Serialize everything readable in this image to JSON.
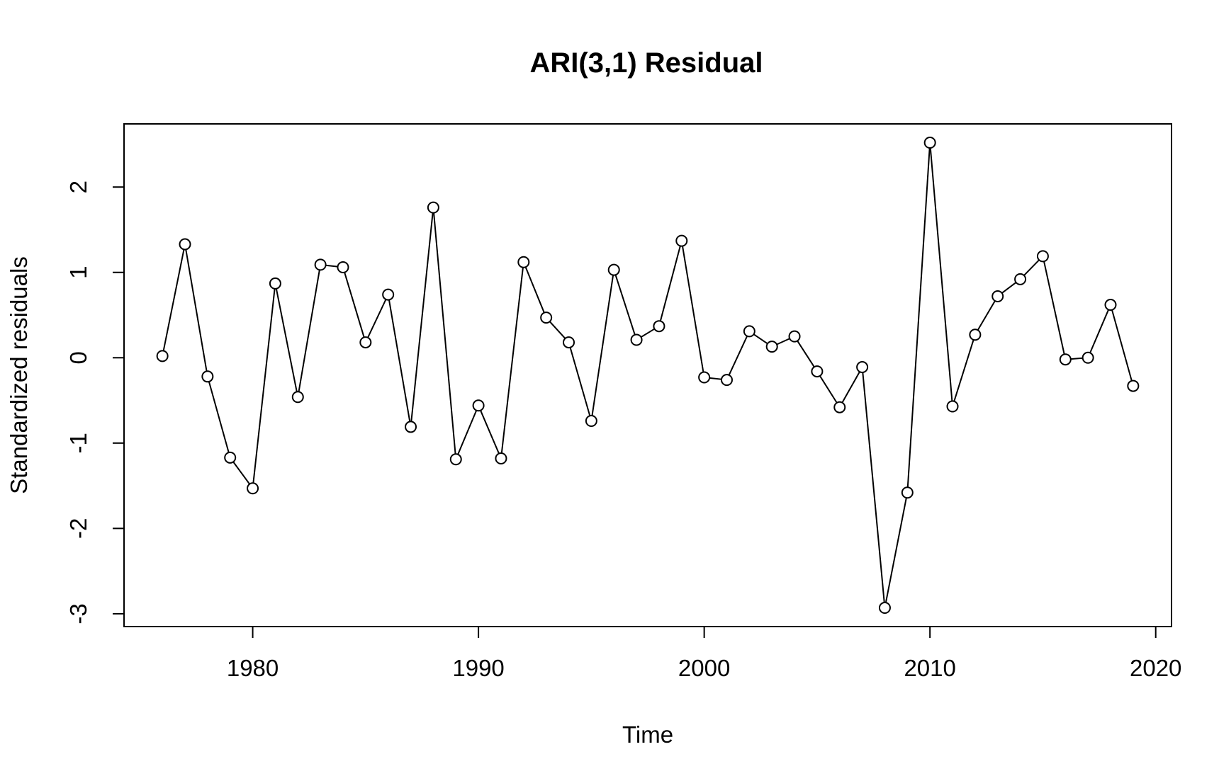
{
  "chart_data": {
    "type": "line",
    "title": "ARI(3,1) Residual",
    "xlabel": "Time",
    "ylabel": "Standardized residuals",
    "xlim": [
      1974.3,
      2020.7
    ],
    "ylim": [
      -3.15,
      2.74
    ],
    "x_ticks": [
      1980,
      1990,
      2000,
      2010,
      2020
    ],
    "y_ticks": [
      -3,
      -2,
      -1,
      0,
      1,
      2
    ],
    "grid": false,
    "marker": "open-circle",
    "series": [
      {
        "x": [
          1976,
          1977,
          1978,
          1979,
          1980,
          1981,
          1982,
          1983,
          1984,
          1985,
          1986,
          1987,
          1988,
          1989,
          1990,
          1991,
          1992,
          1993,
          1994,
          1995,
          1996,
          1997,
          1998,
          1999,
          2000,
          2001,
          2002,
          2003,
          2004,
          2005,
          2006,
          2007,
          2008,
          2009,
          2010,
          2011,
          2012,
          2013,
          2014,
          2015,
          2016,
          2017,
          2018,
          2019
        ],
        "values": [
          0.02,
          1.33,
          -0.22,
          -1.17,
          -1.53,
          0.87,
          -0.46,
          1.09,
          1.06,
          0.18,
          0.74,
          -0.81,
          1.76,
          -1.19,
          -0.56,
          -1.18,
          1.12,
          0.47,
          0.18,
          -0.74,
          1.03,
          0.21,
          0.37,
          1.37,
          -0.23,
          -0.26,
          0.31,
          0.13,
          0.25,
          -0.16,
          -0.58,
          -0.11,
          -2.93,
          -1.58,
          2.52,
          -0.57,
          0.27,
          0.72,
          0.92,
          1.19,
          -0.02,
          0.0,
          0.62,
          -0.33
        ]
      }
    ]
  }
}
